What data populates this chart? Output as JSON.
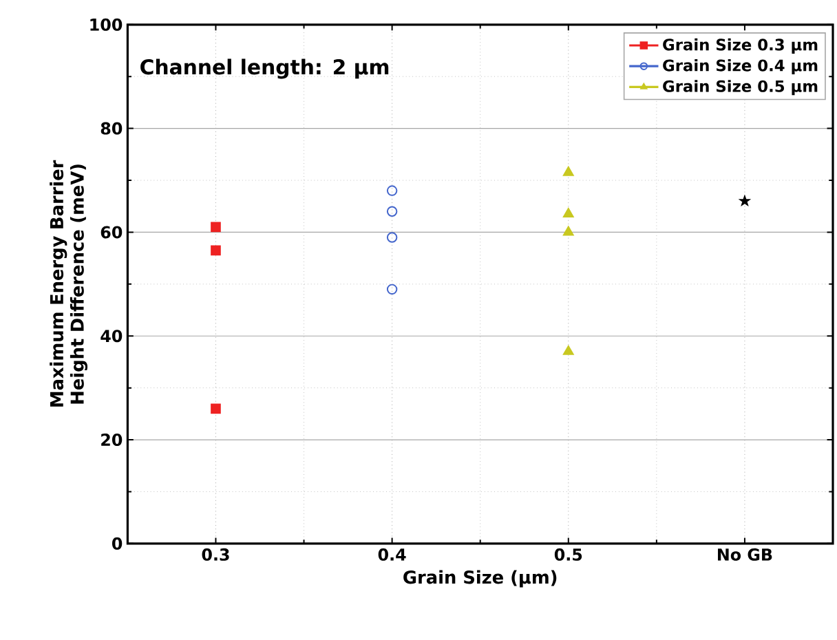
{
  "chart_data": {
    "type": "scatter",
    "xlabel": "Grain Size (μm)",
    "ylabel": "Maximum Energy Barrier Height Difference (meV)",
    "categories": [
      "0.3",
      "0.4",
      "0.5",
      "No GB"
    ],
    "ylim": [
      0,
      100
    ],
    "yticks": [
      0,
      20,
      40,
      60,
      80,
      100
    ],
    "grid": true,
    "legend": "top right",
    "annotations": [
      "Channel length: 2 μm"
    ],
    "series": [
      {
        "name": "Grain Size 0.3 μm",
        "color": "#ee2222",
        "marker": "square",
        "x": [
          "0.3",
          "0.3",
          "0.3"
        ],
        "values": [
          61,
          56.5,
          26
        ]
      },
      {
        "name": "Grain Size 0.4 μm",
        "color": "#4466cc",
        "marker": "circle",
        "x": [
          "0.4",
          "0.4",
          "0.4",
          "0.4"
        ],
        "values": [
          68,
          64,
          59,
          49
        ]
      },
      {
        "name": "Grain Size 0.5 μm",
        "color": "#c8c820",
        "marker": "triangle",
        "x": [
          "0.5",
          "0.5",
          "0.5",
          "0.5"
        ],
        "values": [
          71.5,
          63.5,
          60,
          37
        ]
      },
      {
        "color": "#000000",
        "marker": "star",
        "x": [
          "No GB"
        ],
        "values": [
          66
        ]
      }
    ]
  }
}
